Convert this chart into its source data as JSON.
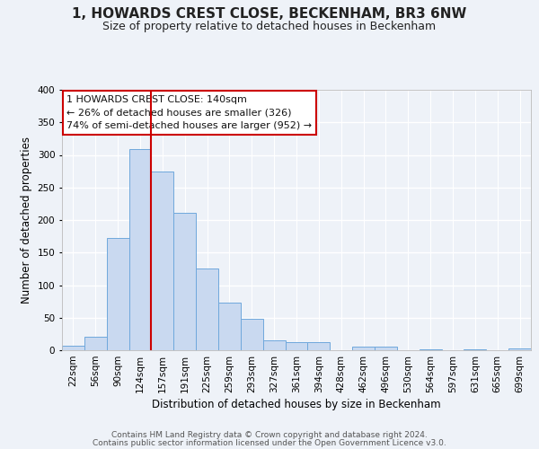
{
  "title": "1, HOWARDS CREST CLOSE, BECKENHAM, BR3 6NW",
  "subtitle": "Size of property relative to detached houses in Beckenham",
  "xlabel": "Distribution of detached houses by size in Beckenham",
  "ylabel": "Number of detached properties",
  "bin_labels": [
    "22sqm",
    "56sqm",
    "90sqm",
    "124sqm",
    "157sqm",
    "191sqm",
    "225sqm",
    "259sqm",
    "293sqm",
    "327sqm",
    "361sqm",
    "394sqm",
    "428sqm",
    "462sqm",
    "496sqm",
    "530sqm",
    "564sqm",
    "597sqm",
    "631sqm",
    "665sqm",
    "699sqm"
  ],
  "bar_values": [
    7,
    21,
    172,
    309,
    275,
    211,
    125,
    73,
    48,
    15,
    13,
    12,
    0,
    6,
    5,
    0,
    2,
    0,
    1,
    0,
    3
  ],
  "bar_color": "#c9d9f0",
  "bar_edge_color": "#6fa8dc",
  "vline_x": 3.5,
  "vline_color": "#cc0000",
  "ylim": [
    0,
    400
  ],
  "yticks": [
    0,
    50,
    100,
    150,
    200,
    250,
    300,
    350,
    400
  ],
  "annotation_title": "1 HOWARDS CREST CLOSE: 140sqm",
  "annotation_line1": "← 26% of detached houses are smaller (326)",
  "annotation_line2": "74% of semi-detached houses are larger (952) →",
  "annotation_box_facecolor": "#ffffff",
  "annotation_box_edgecolor": "#cc0000",
  "footer1": "Contains HM Land Registry data © Crown copyright and database right 2024.",
  "footer2": "Contains public sector information licensed under the Open Government Licence v3.0.",
  "bg_color": "#eef2f8",
  "grid_color": "#ffffff",
  "title_fontsize": 11,
  "subtitle_fontsize": 9,
  "axis_label_fontsize": 8.5,
  "tick_fontsize": 7.5,
  "annotation_fontsize": 8,
  "footer_fontsize": 6.5
}
